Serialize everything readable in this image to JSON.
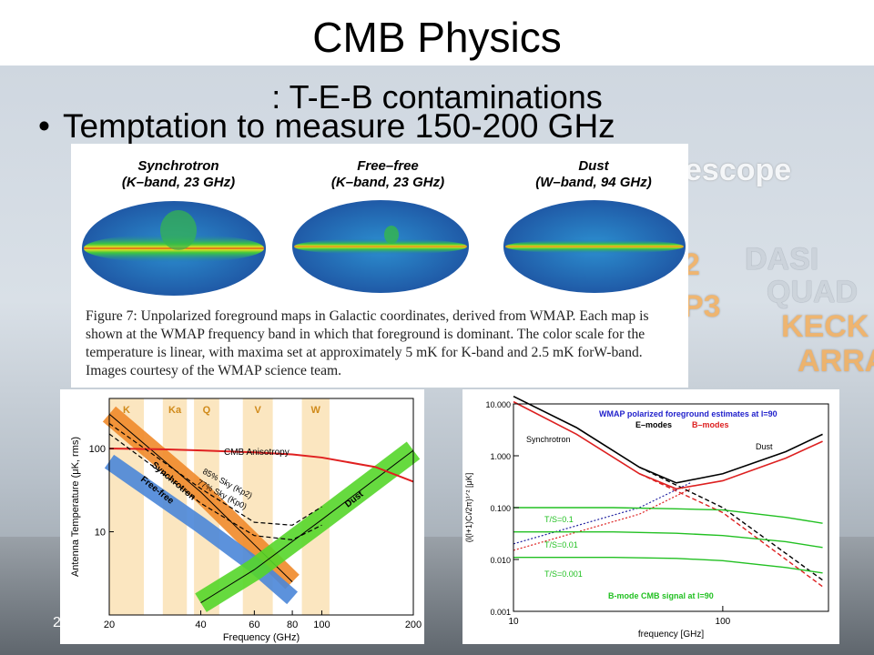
{
  "slide": {
    "title_line1": "CMB Physics",
    "title_line2": ": T-E-B contaminations",
    "bullet": "Temptation to measure 150-200 GHz",
    "page_number": "2",
    "background_words": [
      "escope",
      "DASI",
      "2",
      "QUAD",
      "P3",
      "KECK",
      "ARRAY"
    ]
  },
  "maps_figure": {
    "panels": [
      {
        "name": "Synchrotron",
        "sub": "(K–band, 23 GHz)"
      },
      {
        "name": "Free–free",
        "sub": "(K–band, 23 GHz)"
      },
      {
        "name": "Dust",
        "sub": "(W–band, 94 GHz)"
      }
    ],
    "caption": "Figure 7: Unpolarized foreground maps in Galactic coordinates, derived from WMAP. Each map is shown at the WMAP frequency band in which that foreground is dominant. The color scale for the temperature is linear, with maxima set at approximately 5 mK for K-band and 2.5 mK forW-band. Images courtesy of the WMAP science team."
  },
  "chart_data": [
    {
      "type": "line",
      "xlabel": "Frequency (GHz)",
      "ylabel": "Antenna Temperature (μK, rms)",
      "x_scale": "log",
      "y_scale": "log",
      "x_ticks": [
        "20",
        "40",
        "60",
        "80",
        "100",
        "200"
      ],
      "y_ticks": [
        "10",
        "100"
      ],
      "bands": [
        "K",
        "Ka",
        "Q",
        "V",
        "W"
      ],
      "annotations": [
        "CMB Anisotropy",
        "85% Sky (Kp2)",
        "77% Sky (Kp0)",
        "Synchrotron",
        "Free-free",
        "Dust"
      ],
      "colors": {
        "band": "#fbe6c0",
        "cmb": "#e02020",
        "synchrotron": "#f08a2a",
        "freefree": "#4a86d8",
        "dust": "#55d62a"
      },
      "series": [
        {
          "name": "CMB Anisotropy",
          "x": [
            20,
            30,
            40,
            60,
            80,
            100,
            150,
            200
          ],
          "y": [
            100,
            98,
            95,
            90,
            85,
            78,
            60,
            40
          ]
        },
        {
          "name": "85% Sky (Kp2)",
          "x": [
            20,
            30,
            40,
            60,
            80,
            100
          ],
          "y": [
            200,
            70,
            33,
            13,
            12,
            20
          ]
        },
        {
          "name": "77% Sky (Kp0)",
          "x": [
            20,
            30,
            40,
            60,
            80,
            100
          ],
          "y": [
            150,
            50,
            22,
            9,
            8,
            12
          ]
        },
        {
          "name": "Synchrotron",
          "x": [
            20,
            40,
            60,
            80
          ],
          "y": [
            260,
            30,
            7,
            2.5
          ]
        },
        {
          "name": "Free-free",
          "x": [
            20,
            40,
            60,
            80
          ],
          "y": [
            70,
            12,
            4,
            1.6
          ]
        },
        {
          "name": "Dust",
          "x": [
            40,
            60,
            100,
            200
          ],
          "y": [
            1.4,
            3.5,
            14,
            95
          ]
        }
      ]
    },
    {
      "type": "line",
      "title": "WMAP polarized foreground estimates at l=90",
      "xlabel": "frequency [GHz]",
      "ylabel": "(l(l+1)Cₗ/2π)¹ᐟ² [μK]",
      "x_scale": "log",
      "y_scale": "log",
      "x_ticks": [
        "10",
        "100"
      ],
      "y_ticks": [
        "0.001",
        "0.010",
        "0.100",
        "1.000",
        "10.000"
      ],
      "legend": [
        "E–modes",
        "B–modes"
      ],
      "annotations": [
        "Synchrotron",
        "Dust",
        "T/S=0.1",
        "T/S=0.01",
        "T/S=0.001",
        "B-mode CMB signal at l=90"
      ],
      "colors": {
        "emode": "#000000",
        "bmode": "#dd2020",
        "cmb": "#22c022",
        "title": "#2222cc"
      },
      "series": [
        {
          "name": "E–modes",
          "x": [
            10,
            20,
            40,
            60,
            100,
            200,
            300
          ],
          "y": [
            14,
            3.5,
            0.6,
            0.3,
            0.45,
            1.2,
            2.6
          ]
        },
        {
          "name": "B–modes",
          "x": [
            10,
            20,
            40,
            60,
            100,
            200,
            300
          ],
          "y": [
            11,
            2.6,
            0.45,
            0.23,
            0.33,
            0.9,
            1.9
          ]
        },
        {
          "name": "T/S=0.1",
          "x": [
            10,
            30,
            60,
            100,
            200,
            300
          ],
          "y": [
            0.1,
            0.1,
            0.095,
            0.09,
            0.065,
            0.05
          ]
        },
        {
          "name": "T/S=0.01",
          "x": [
            10,
            30,
            60,
            100,
            200,
            300
          ],
          "y": [
            0.034,
            0.034,
            0.032,
            0.029,
            0.022,
            0.017
          ]
        },
        {
          "name": "T/S=0.001",
          "x": [
            10,
            30,
            60,
            100,
            200,
            300
          ],
          "y": [
            0.011,
            0.011,
            0.0105,
            0.0095,
            0.007,
            0.0055
          ]
        }
      ]
    }
  ]
}
